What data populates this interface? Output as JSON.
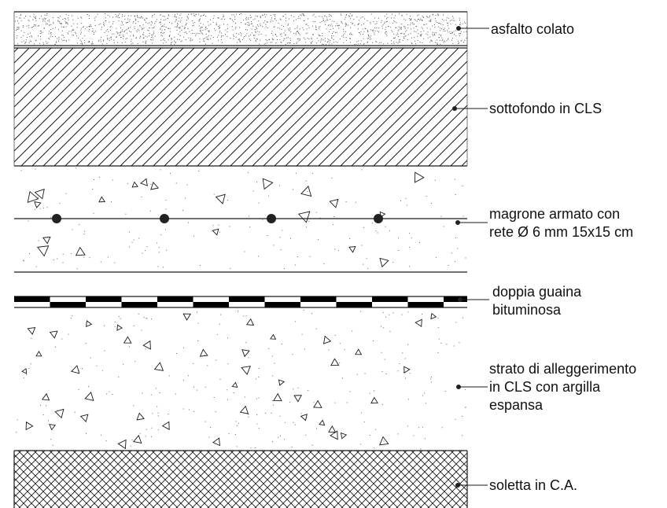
{
  "title": "",
  "layers": [
    {
      "id": "asfalto",
      "pattern": "dots",
      "lines": [
        "asfalto colato"
      ]
    },
    {
      "id": "sottofondo",
      "pattern": "diagonal-hatch",
      "lines": [
        "sottofondo in CLS"
      ]
    },
    {
      "id": "magrone",
      "pattern": "aggregate-with-rebar",
      "lines": [
        "magrone armato con",
        "rete Ø 6 mm 15x15 cm"
      ]
    },
    {
      "id": "guaina",
      "pattern": "black-white-blocks",
      "lines": [
        "doppia guaina",
        "bituminosa"
      ]
    },
    {
      "id": "alleggerimento",
      "pattern": "aggregate",
      "lines": [
        "strato di alleggerimento",
        "in CLS con argilla",
        "espansa"
      ]
    },
    {
      "id": "soletta",
      "pattern": "cross-hatch",
      "lines": [
        "soletta in  C.A."
      ]
    }
  ],
  "colors": {
    "line": "#1a1a1a",
    "fill": "#000000",
    "background": "#ffffff"
  }
}
